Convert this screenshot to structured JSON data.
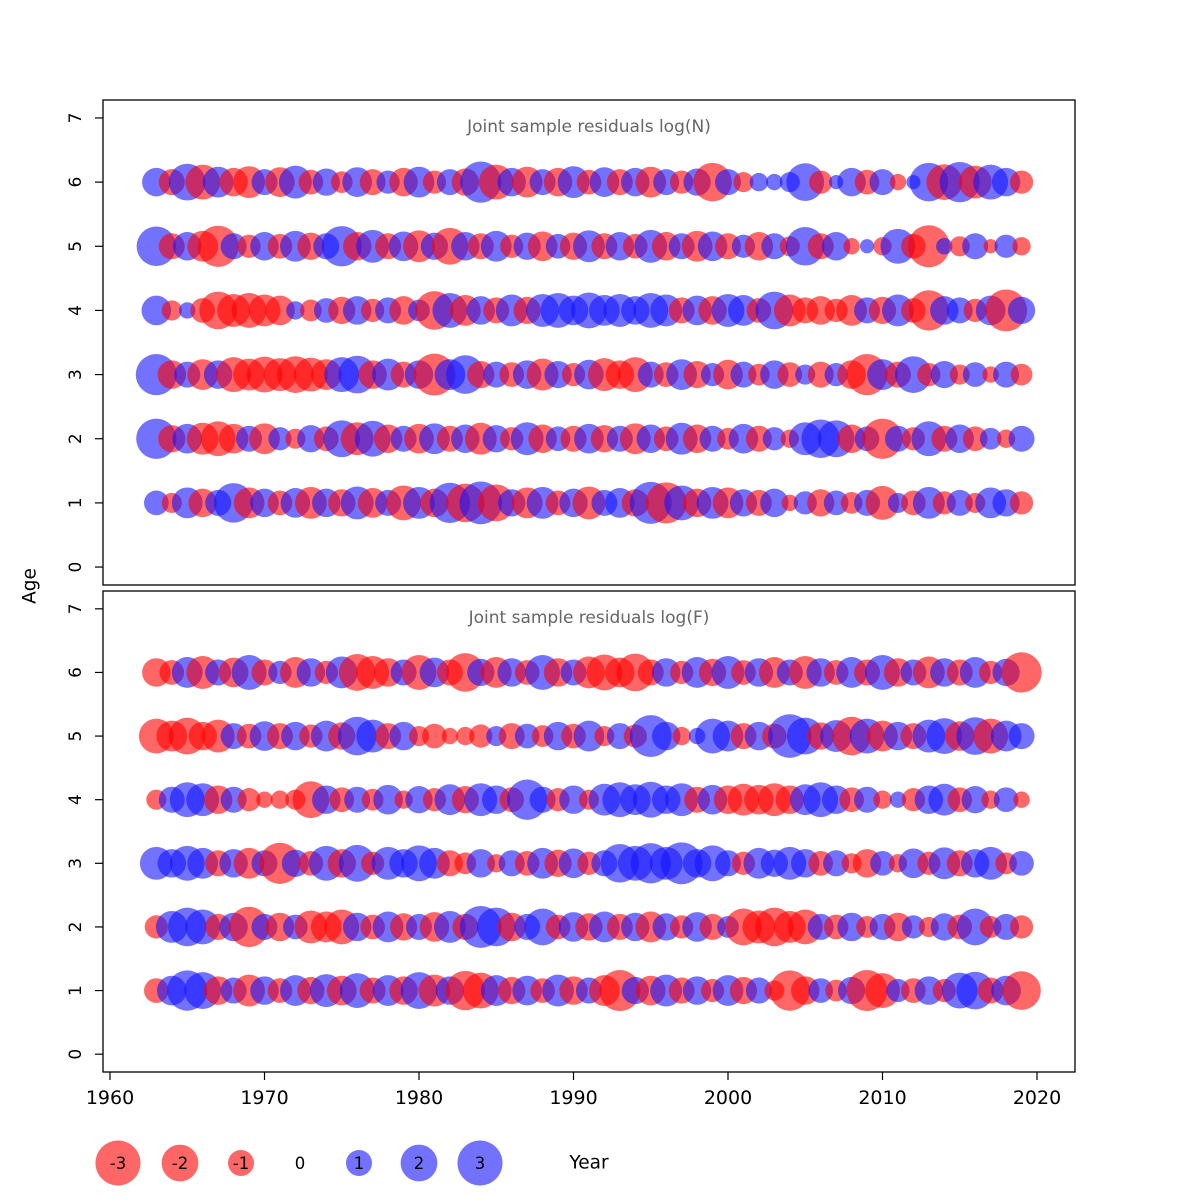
{
  "figure": {
    "ylab": "Age",
    "xlab": "Year"
  },
  "colors": {
    "negative": "#ff0000",
    "positive": "#1414ff",
    "bubble_opacity": 0.6,
    "title_gray": "#666666",
    "axis_black": "#000000"
  },
  "legend": {
    "values": [
      -3,
      -2,
      -1,
      0,
      1,
      2,
      3
    ]
  },
  "chart_data": [
    {
      "type": "bubble",
      "title": "Joint sample residuals log(N)",
      "xlabel": "Year",
      "ylabel": "Age",
      "ylim": [
        0,
        7
      ],
      "y_ticks": [
        0,
        1,
        2,
        3,
        4,
        5,
        6,
        7
      ],
      "x_ticks": [
        1960,
        1970,
        1980,
        1990,
        2000,
        2010,
        2020
      ],
      "years": [
        1963,
        1964,
        1965,
        1966,
        1967,
        1968,
        1969,
        1970,
        1971,
        1972,
        1973,
        1974,
        1975,
        1976,
        1977,
        1978,
        1979,
        1980,
        1981,
        1982,
        1983,
        1984,
        1985,
        1986,
        1987,
        1988,
        1989,
        1990,
        1991,
        1992,
        1993,
        1994,
        1995,
        1996,
        1997,
        1998,
        1999,
        2000,
        2001,
        2002,
        2003,
        2004,
        2005,
        2006,
        2007,
        2008,
        2009,
        2010,
        2011,
        2012,
        2013,
        2014,
        2015,
        2016,
        2017,
        2018,
        2019
      ],
      "series": [
        {
          "age": 1,
          "values": [
            0.9,
            -0.6,
            1.4,
            -1.2,
            1.0,
            2.3,
            -1.4,
            1.2,
            -0.9,
            1.3,
            -1.5,
            1.2,
            -1.1,
            1.6,
            -1.3,
            1.0,
            -1.8,
            1.5,
            -1.2,
            2.4,
            -2.2,
            2.7,
            -2.0,
            1.1,
            -1.4,
            1.5,
            -0.9,
            1.2,
            -1.6,
            1.0,
            1.3,
            -1.1,
            2.6,
            -2.5,
            1.8,
            -1.2,
            1.5,
            -1.4,
            1.1,
            -1.0,
            1.2,
            -0.4,
            0.8,
            -1.1,
            0.9,
            -0.7,
            1.0,
            -1.7,
            0.6,
            -0.9,
            1.5,
            -0.8,
            1.0,
            -0.6,
            1.4,
            1.1,
            -0.8
          ]
        },
        {
          "age": 2,
          "values": [
            2.4,
            -1.1,
            1.3,
            -1.5,
            -1.8,
            -1.3,
            1.0,
            -1.4,
            0.8,
            -0.6,
            1.1,
            -0.9,
            2.0,
            -1.6,
            1.9,
            -1.2,
            1.0,
            -1.3,
            1.4,
            -1.0,
            1.2,
            -1.5,
            1.1,
            -0.8,
            1.6,
            -1.2,
            0.9,
            -1.0,
            1.3,
            -1.1,
            1.0,
            -1.4,
            1.2,
            -0.9,
            1.5,
            -1.2,
            1.0,
            -0.7,
            1.3,
            -1.0,
            0.8,
            -0.5,
            1.6,
            2.2,
            2.0,
            -1.2,
            0.9,
            -2.4,
            1.0,
            -0.8,
            1.8,
            -1.0,
            1.2,
            -0.9,
            0.7,
            -0.5,
            1.0
          ]
        },
        {
          "age": 3,
          "values": [
            2.5,
            -1.2,
            1.0,
            -1.4,
            1.2,
            -1.8,
            -1.5,
            -1.9,
            -1.6,
            -2.0,
            -1.7,
            -1.4,
            1.8,
            2.1,
            -1.2,
            1.5,
            -1.0,
            1.2,
            -2.6,
            1.4,
            2.2,
            -1.1,
            1.0,
            -0.9,
            1.2,
            -1.5,
            1.1,
            -0.8,
            1.3,
            -1.6,
            -1.2,
            -1.8,
            1.0,
            -0.9,
            1.4,
            -1.1,
            0.8,
            -1.3,
            1.0,
            -0.7,
            1.2,
            -0.9,
            0.6,
            -1.0,
            0.8,
            -1.2,
            -2.5,
            1.4,
            -1.0,
            2.0,
            -0.8,
            1.1,
            -0.6,
            0.9,
            -0.4,
            1.0,
            -0.7
          ]
        },
        {
          "age": 4,
          "values": [
            1.3,
            -0.6,
            0.4,
            -0.9,
            -2.1,
            -1.6,
            -1.8,
            -1.5,
            -1.3,
            0.5,
            -0.7,
            0.9,
            -1.1,
            1.2,
            -0.8,
            1.0,
            -1.2,
            0.7,
            -2.2,
            1.8,
            -1.4,
            1.2,
            -1.0,
            1.5,
            -1.1,
            1.6,
            1.8,
            1.3,
            1.9,
            1.4,
            1.6,
            1.2,
            1.8,
            1.5,
            -1.0,
            1.3,
            -1.2,
            1.6,
            1.4,
            -0.9,
            2.1,
            -1.5,
            -1.0,
            -1.2,
            -0.8,
            -1.4,
            1.0,
            -1.1,
            1.5,
            -0.9,
            -2.4,
            1.2,
            1.0,
            -0.8,
            1.3,
            -2.6,
            1.1
          ]
        },
        {
          "age": 5,
          "values": [
            2.3,
            -1.0,
            1.2,
            -1.4,
            -2.5,
            1.0,
            -0.8,
            1.2,
            -0.9,
            1.4,
            -1.1,
            1.0,
            2.4,
            -1.2,
            1.6,
            -1.0,
            1.3,
            -1.5,
            1.1,
            -2.0,
            1.2,
            -1.0,
            1.4,
            -0.8,
            1.1,
            -1.3,
            0.9,
            -1.1,
            1.5,
            -1.0,
            1.2,
            -0.9,
            1.6,
            -1.2,
            1.0,
            -1.4,
            1.3,
            -1.0,
            0.8,
            -1.2,
            1.0,
            -0.6,
            2.2,
            -1.0,
            1.2,
            -0.4,
            0.3,
            -0.5,
            1.8,
            -0.9,
            -2.6,
            0.4,
            -0.6,
            1.0,
            -0.3,
            0.8,
            -0.5
          ]
        },
        {
          "age": 6,
          "values": [
            1.2,
            -1.0,
            2.0,
            -1.8,
            1.4,
            -1.2,
            -1.5,
            1.0,
            -1.3,
            1.6,
            -0.9,
            1.1,
            -0.7,
            1.3,
            -1.0,
            0.8,
            -1.2,
            1.4,
            -0.8,
            1.0,
            -1.1,
            2.5,
            -1.8,
            1.2,
            -1.4,
            1.0,
            -1.2,
            1.5,
            -0.9,
            1.3,
            -1.0,
            1.2,
            -1.4,
            1.0,
            -0.8,
            1.1,
            -2.2,
            1.0,
            -0.6,
            0.5,
            0.4,
            0.6,
            2.1,
            -0.8,
            0.3,
            1.2,
            -0.9,
            1.0,
            -0.4,
            0.3,
            2.2,
            -1.9,
            2.4,
            -1.6,
            1.8,
            1.2,
            -0.8
          ]
        }
      ]
    },
    {
      "type": "bubble",
      "title": "Joint sample residuals log(F)",
      "xlabel": "Year",
      "ylabel": "Age",
      "ylim": [
        0,
        7
      ],
      "y_ticks": [
        0,
        1,
        2,
        3,
        4,
        5,
        6,
        7
      ],
      "x_ticks": [
        1960,
        1970,
        1980,
        1990,
        2000,
        2010,
        2020
      ],
      "years": [
        1963,
        1964,
        1965,
        1966,
        1967,
        1968,
        1969,
        1970,
        1971,
        1972,
        1973,
        1974,
        1975,
        1976,
        1977,
        1978,
        1979,
        1980,
        1981,
        1982,
        1983,
        1984,
        1985,
        1986,
        1987,
        1988,
        1989,
        1990,
        1991,
        1992,
        1993,
        1994,
        1995,
        1996,
        1997,
        1998,
        1999,
        2000,
        2001,
        2002,
        2003,
        2004,
        2005,
        2006,
        2007,
        2008,
        2009,
        2010,
        2011,
        2012,
        2013,
        2014,
        2015,
        2016,
        2017,
        2018,
        2019
      ],
      "series": [
        {
          "age": 1,
          "values": [
            -0.9,
            1.3,
            2.4,
            2.0,
            -1.2,
            1.0,
            -1.5,
            1.2,
            -0.9,
            1.4,
            -1.1,
            1.6,
            -1.3,
            1.8,
            -1.0,
            1.4,
            -1.2,
            2.0,
            -1.5,
            1.2,
            -2.3,
            -1.9,
            1.4,
            -1.1,
            1.3,
            -0.9,
            1.5,
            -1.2,
            1.0,
            -1.4,
            -2.5,
            1.1,
            -1.3,
            1.5,
            -1.0,
            1.2,
            -0.8,
            1.4,
            -1.1,
            1.0,
            -0.6,
            -2.4,
            -1.2,
            0.9,
            -0.7,
            1.1,
            -2.5,
            -1.8,
            0.8,
            -0.9,
            1.2,
            -0.8,
            1.9,
            2.1,
            -1.0,
            1.3,
            -2.2
          ]
        },
        {
          "age": 2,
          "values": [
            -0.8,
            1.5,
            2.2,
            1.8,
            -1.0,
            1.2,
            -2.4,
            1.0,
            -1.2,
            0.9,
            -1.6,
            -1.4,
            -1.8,
            1.2,
            -0.9,
            1.4,
            -1.1,
            1.0,
            -1.3,
            1.5,
            -1.0,
            2.6,
            2.2,
            -1.2,
            1.0,
            2.0,
            -0.9,
            1.3,
            -1.1,
            1.4,
            -1.0,
            1.2,
            -1.4,
            1.1,
            -0.8,
            1.3,
            -1.0,
            0.7,
            -2.0,
            -1.6,
            -2.2,
            -1.5,
            -1.8,
            1.0,
            -0.9,
            1.2,
            -0.7,
            1.0,
            -1.2,
            0.8,
            -0.6,
            1.1,
            -0.9,
            2.0,
            -0.7,
            1.0,
            -0.8
          ]
        },
        {
          "age": 3,
          "values": [
            1.6,
            1.2,
            1.8,
            1.4,
            -1.0,
            1.2,
            -1.4,
            1.0,
            -2.5,
            1.1,
            -0.9,
            1.8,
            -1.2,
            2.0,
            -0.8,
            1.6,
            1.2,
            1.9,
            1.4,
            -1.0,
            -0.7,
            1.2,
            -0.5,
            1.0,
            -0.9,
            1.4,
            -1.1,
            1.3,
            -0.8,
            1.0,
            2.2,
            1.8,
            2.4,
            1.6,
            2.6,
            1.2,
            1.9,
            1.0,
            -0.8,
            1.4,
            1.1,
            1.6,
            1.2,
            -0.9,
            1.0,
            -0.6,
            -1.2,
            0.9,
            -0.5,
            1.3,
            -0.8,
            1.5,
            -1.0,
            1.2,
            1.6,
            -0.7,
            0.9
          ]
        },
        {
          "age": 4,
          "values": [
            -0.6,
            1.0,
            1.8,
            1.6,
            -1.2,
            1.0,
            -0.8,
            -0.4,
            -0.5,
            -0.6,
            -2.0,
            1.2,
            -0.9,
            1.0,
            -0.7,
            1.3,
            -0.5,
            1.1,
            -0.8,
            1.4,
            -1.1,
            1.6,
            1.2,
            -0.9,
            2.4,
            1.0,
            -0.8,
            1.2,
            -0.6,
            1.5,
            1.8,
            1.4,
            1.9,
            1.2,
            1.6,
            -1.0,
            1.3,
            -1.2,
            -1.5,
            -1.3,
            -1.6,
            -1.2,
            1.4,
            1.8,
            1.2,
            -0.9,
            1.0,
            -0.5,
            0.4,
            -0.8,
            1.2,
            1.5,
            -0.9,
            1.1,
            -0.5,
            0.9,
            -0.4
          ]
        },
        {
          "age": 5,
          "values": [
            -1.8,
            -1.4,
            -2.0,
            -1.2,
            -1.6,
            1.0,
            -0.9,
            1.3,
            -1.0,
            1.2,
            -0.8,
            1.4,
            -1.1,
            2.2,
            1.6,
            -1.0,
            1.2,
            -0.6,
            -0.9,
            -0.4,
            -0.5,
            -0.8,
            0.6,
            -1.0,
            0.9,
            -0.7,
            1.2,
            -0.9,
            1.4,
            -0.6,
            1.0,
            -0.8,
            2.6,
            1.2,
            -0.5,
            0.4,
            1.8,
            1.4,
            -1.0,
            1.2,
            -0.9,
            2.8,
            2.0,
            -1.1,
            1.5,
            -2.2,
            1.8,
            -1.4,
            1.2,
            -1.0,
            1.6,
            1.9,
            -1.3,
            2.1,
            -1.8,
            1.4,
            1.0
          ]
        },
        {
          "age": 6,
          "values": [
            -1.2,
            -0.9,
            1.4,
            -1.6,
            1.0,
            -1.3,
            1.8,
            -1.0,
            0.8,
            -1.4,
            1.2,
            -0.8,
            1.5,
            -2.0,
            -1.6,
            -1.2,
            1.0,
            -1.8,
            1.3,
            -1.0,
            -2.2,
            1.1,
            -1.4,
            1.2,
            -0.9,
            1.8,
            -1.2,
            1.0,
            -1.5,
            -1.9,
            -1.3,
            -2.1,
            -1.0,
            1.2,
            -0.8,
            1.4,
            -1.1,
            1.6,
            -0.9,
            1.2,
            -1.4,
            1.0,
            -1.6,
            1.2,
            -0.9,
            1.4,
            -1.0,
            1.8,
            -1.2,
            1.0,
            -1.5,
            1.2,
            -1.0,
            1.4,
            -0.8,
            1.1,
            -2.4
          ]
        }
      ]
    }
  ]
}
